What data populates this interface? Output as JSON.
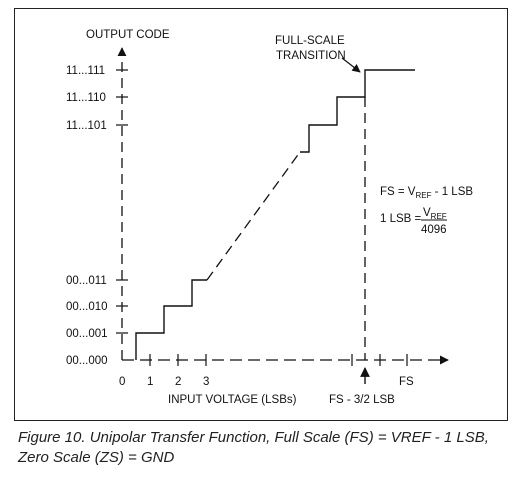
{
  "figure": {
    "y_axis_title": "OUTPUT CODE",
    "x_axis_title": "INPUT VOLTAGE (LSBs)",
    "y_codes_top": [
      "11...111",
      "11...110",
      "11...101"
    ],
    "y_codes_bottom": [
      "00...011",
      "00...010",
      "00...001",
      "00...000"
    ],
    "x_ticks": [
      "0",
      "1",
      "2",
      "3"
    ],
    "fs_tick": "FS",
    "fs_marker_label": "FS - 3/2 LSB",
    "callout": [
      "FULL-SCALE",
      "TRANSITION"
    ],
    "equation_fs": {
      "lhs": "FS = V",
      "sub": "REF",
      "rhs": " - 1 LSB"
    },
    "equation_lsb": {
      "lhs": "1 LSB =",
      "num": "V",
      "num_sub": "REF",
      "den": "4096"
    }
  },
  "caption": "Figure 10. Unipolar Transfer Function, Full Scale (FS) = VREF - 1 LSB, Zero Scale (ZS) = GND"
}
